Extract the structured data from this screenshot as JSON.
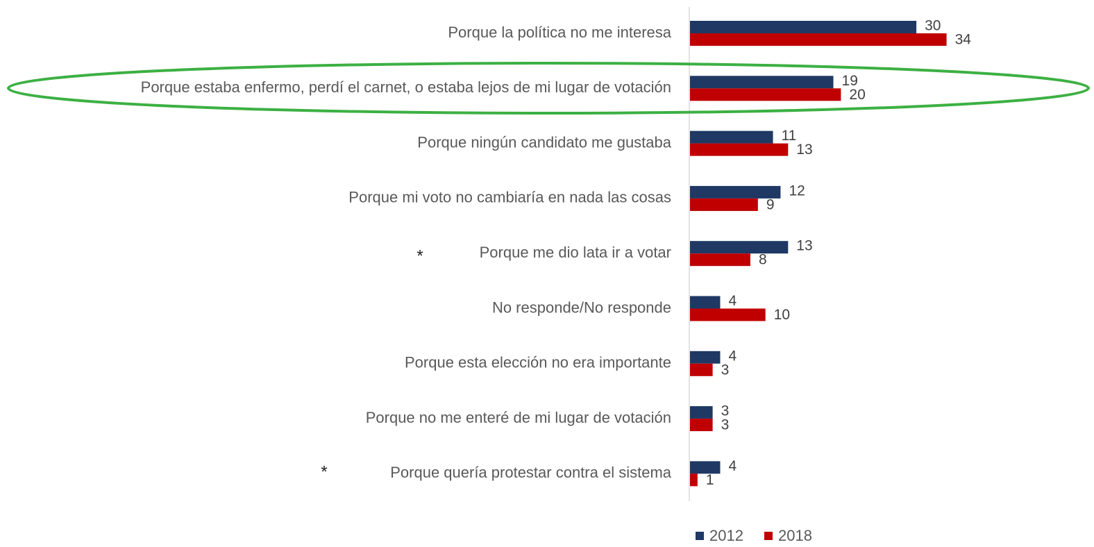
{
  "chart_data": {
    "type": "bar",
    "orientation": "horizontal",
    "categories": [
      "Porque la política no me interesa",
      "Porque estaba enfermo, perdí el carnet, o estaba lejos de mi lugar de votación",
      "Porque ningún candidato me gustaba",
      "Porque mi voto no cambiaría en nada las cosas",
      "Porque me dio lata ir a votar",
      "No responde/No responde",
      "Porque esta elección no era importante",
      "Porque no me enteré de mi lugar de votación",
      "Porque quería protestar contra el sistema"
    ],
    "series": [
      {
        "name": "2012",
        "color": "#1f3864",
        "values": [
          30,
          19,
          11,
          12,
          13,
          4,
          4,
          3,
          4
        ]
      },
      {
        "name": "2018",
        "color": "#c00000",
        "values": [
          34,
          20,
          13,
          9,
          8,
          10,
          3,
          3,
          1
        ]
      }
    ],
    "annotations": [
      "*",
      "*"
    ],
    "legend": "bottom"
  }
}
